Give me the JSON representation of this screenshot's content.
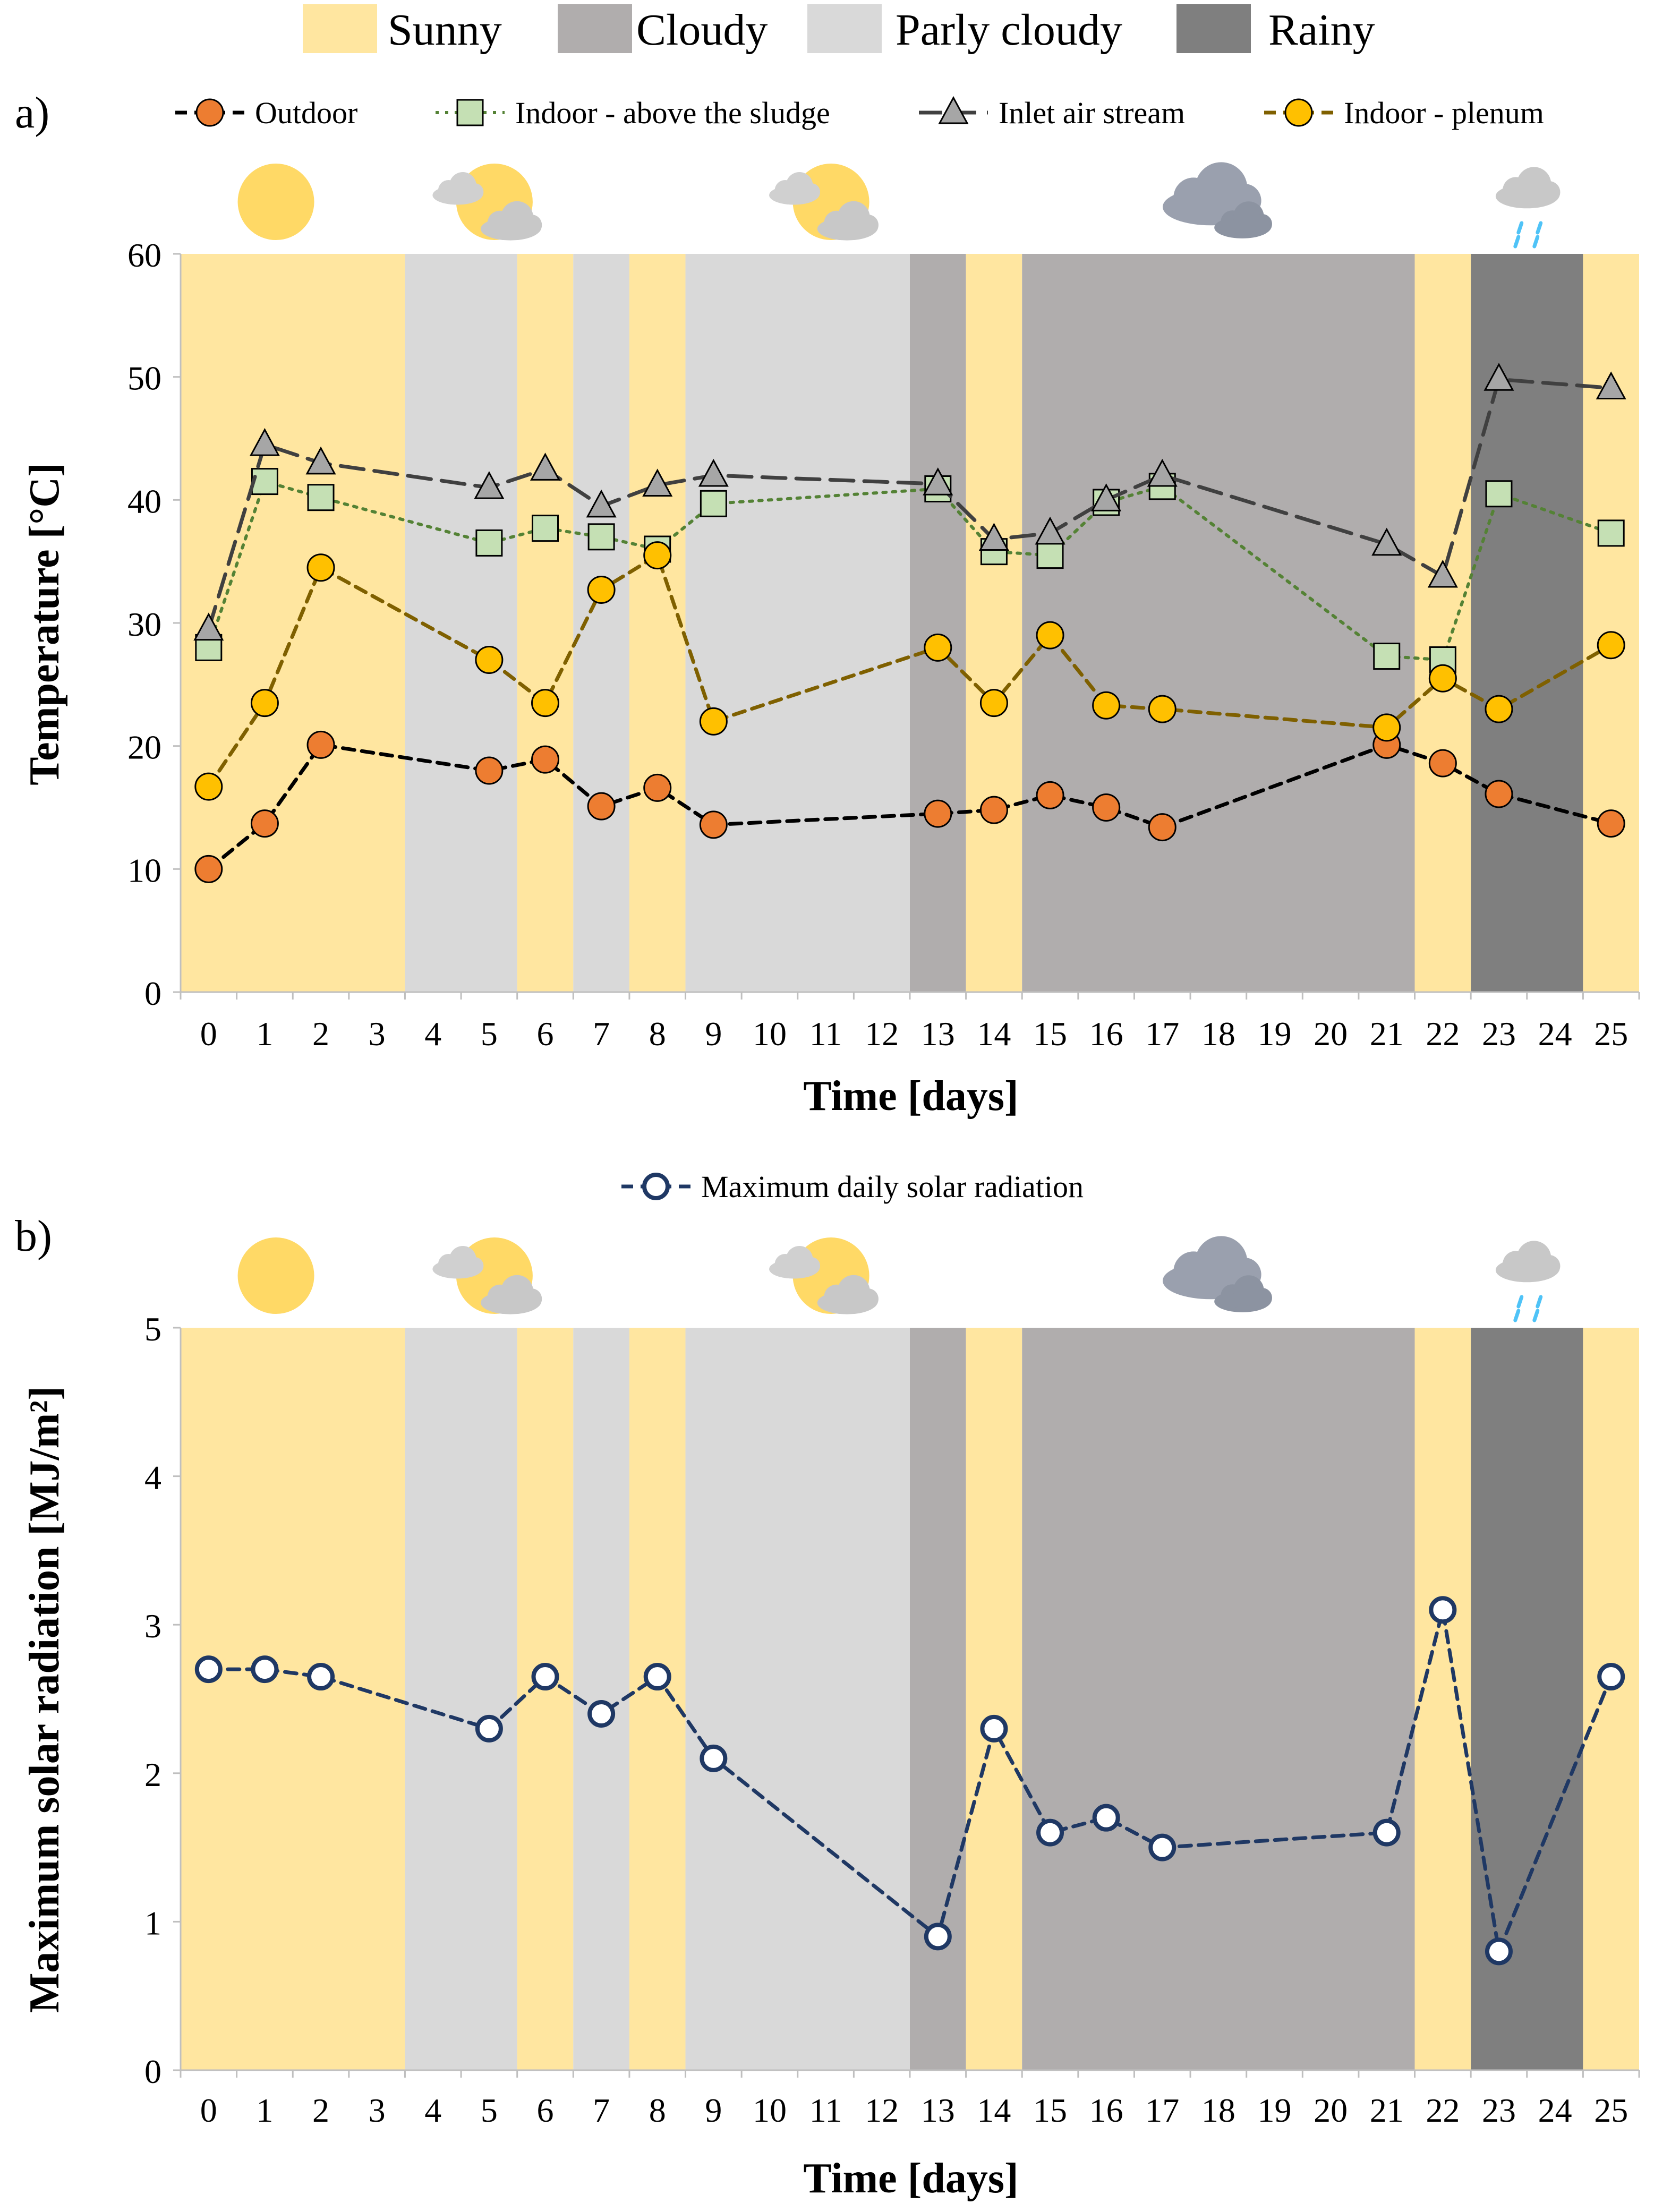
{
  "weather_legend": [
    {
      "key": "sunny",
      "label": "Sunny",
      "color": "#FFE6A0"
    },
    {
      "key": "cloudy",
      "label": "Cloudy",
      "color": "#B0ADAD"
    },
    {
      "key": "partly",
      "label": "Parly cloudy",
      "color": "#D9D9D9"
    },
    {
      "key": "rainy",
      "label": "Rainy",
      "color": "#7F7F7F"
    }
  ],
  "weather_icons": [
    {
      "day_index": 1.2,
      "type": "sun-icon"
    },
    {
      "day_index": 5.0,
      "type": "partly-cloudy-icon"
    },
    {
      "day_index": 11.0,
      "type": "partly-cloudy-icon"
    },
    {
      "day_index": 18.0,
      "type": "cloud-icon"
    },
    {
      "day_index": 23.5,
      "type": "rain-icon"
    }
  ],
  "background_bands": [
    {
      "start": 0,
      "end": 4,
      "weather": "sunny"
    },
    {
      "start": 4,
      "end": 6,
      "weather": "partly"
    },
    {
      "start": 6,
      "end": 7,
      "weather": "sunny"
    },
    {
      "start": 7,
      "end": 8,
      "weather": "partly"
    },
    {
      "start": 8,
      "end": 9,
      "weather": "sunny"
    },
    {
      "start": 9,
      "end": 13,
      "weather": "partly"
    },
    {
      "start": 13,
      "end": 14,
      "weather": "cloudy"
    },
    {
      "start": 14,
      "end": 15,
      "weather": "sunny"
    },
    {
      "start": 15,
      "end": 22,
      "weather": "cloudy"
    },
    {
      "start": 22,
      "end": 23,
      "weather": "sunny"
    },
    {
      "start": 23,
      "end": 25,
      "weather": "rainy"
    },
    {
      "start": 25,
      "end": 26,
      "weather": "sunny"
    }
  ],
  "chart_data": [
    {
      "type": "line",
      "panel_label": "a)",
      "xlabel": "Time [days]",
      "ylabel": "Temperature [°C]",
      "ylim": [
        0,
        60
      ],
      "yticks": [
        0,
        10,
        20,
        30,
        40,
        50,
        60
      ],
      "categories": [
        "0",
        "1",
        "2",
        "3",
        "4",
        "5",
        "6",
        "7",
        "8",
        "9",
        "10",
        "11",
        "12",
        "13",
        "14",
        "15",
        "16",
        "17",
        "18",
        "19",
        "20",
        "21",
        "22",
        "23",
        "24",
        "25"
      ],
      "series": [
        {
          "name": "Outdoor",
          "marker": "circle",
          "line": "dashed",
          "color": "#000000",
          "fill": "#ED7D31",
          "points": [
            [
              0,
              10
            ],
            [
              1,
              13.7
            ],
            [
              2,
              20.1
            ],
            [
              5,
              18
            ],
            [
              6,
              18.9
            ],
            [
              7,
              15.1
            ],
            [
              8,
              16.6
            ],
            [
              9,
              13.6
            ],
            [
              13,
              14.5
            ],
            [
              14,
              14.8
            ],
            [
              15,
              16
            ],
            [
              16,
              15
            ],
            [
              17,
              13.4
            ],
            [
              21,
              20.1
            ],
            [
              22,
              18.6
            ],
            [
              23,
              16.1
            ],
            [
              25,
              13.7
            ]
          ]
        },
        {
          "name": "Indoor - above the sludge",
          "marker": "square",
          "line": "dotted",
          "color": "#548235",
          "fill": "#C5E0B4",
          "points": [
            [
              0,
              28
            ],
            [
              1,
              41.5
            ],
            [
              2,
              40.2
            ],
            [
              5,
              36.5
            ],
            [
              6,
              37.7
            ],
            [
              7,
              37
            ],
            [
              8,
              36
            ],
            [
              9,
              39.7
            ],
            [
              13,
              40.9
            ],
            [
              14,
              35.8
            ],
            [
              15,
              35.5
            ],
            [
              16,
              39.8
            ],
            [
              17,
              41.1
            ],
            [
              21,
              27.3
            ],
            [
              22,
              27
            ],
            [
              23,
              40.5
            ],
            [
              25,
              37.3
            ]
          ]
        },
        {
          "name": "Inlet air stream",
          "marker": "triangle",
          "line": "longdash",
          "color": "#404040",
          "fill": "#A6A6A6",
          "points": [
            [
              0,
              29.5
            ],
            [
              1,
              44.5
            ],
            [
              2,
              43
            ],
            [
              5,
              41
            ],
            [
              6,
              42.5
            ],
            [
              7,
              39.5
            ],
            [
              8,
              41.2
            ],
            [
              9,
              42
            ],
            [
              13,
              41.3
            ],
            [
              14,
              36.8
            ],
            [
              15,
              37.3
            ],
            [
              16,
              40
            ],
            [
              17,
              42
            ],
            [
              21,
              36.4
            ],
            [
              22,
              33.8
            ],
            [
              23,
              49.8
            ],
            [
              25,
              49.1
            ]
          ]
        },
        {
          "name": "Indoor - plenum",
          "marker": "circle",
          "line": "dashed",
          "color": "#7F6000",
          "fill": "#FFC000",
          "points": [
            [
              0,
              16.7
            ],
            [
              1,
              23.5
            ],
            [
              2,
              34.5
            ],
            [
              5,
              27
            ],
            [
              6,
              23.5
            ],
            [
              7,
              32.7
            ],
            [
              8,
              35.5
            ],
            [
              9,
              22
            ],
            [
              13,
              28
            ],
            [
              14,
              23.5
            ],
            [
              15,
              29
            ],
            [
              16,
              23.3
            ],
            [
              17,
              23
            ],
            [
              21,
              21.5
            ],
            [
              22,
              25.5
            ],
            [
              23,
              23
            ],
            [
              25,
              28.2
            ]
          ]
        }
      ]
    },
    {
      "type": "line",
      "panel_label": "b)",
      "xlabel": "Time [days]",
      "ylabel": "Maximum solar radiation [MJ/m²]",
      "ylim": [
        0,
        5
      ],
      "yticks": [
        0,
        1,
        2,
        3,
        4,
        5
      ],
      "categories": [
        "0",
        "1",
        "2",
        "3",
        "4",
        "5",
        "6",
        "7",
        "8",
        "9",
        "10",
        "11",
        "12",
        "13",
        "14",
        "15",
        "16",
        "17",
        "18",
        "19",
        "20",
        "21",
        "22",
        "23",
        "24",
        "25"
      ],
      "series": [
        {
          "name": "Maximum daily solar radiation",
          "marker": "open-circle",
          "line": "dashed",
          "color": "#1F3864",
          "fill": "#FFFFFF",
          "points": [
            [
              0,
              2.7
            ],
            [
              1,
              2.7
            ],
            [
              2,
              2.65
            ],
            [
              5,
              2.3
            ],
            [
              6,
              2.65
            ],
            [
              7,
              2.4
            ],
            [
              8,
              2.65
            ],
            [
              9,
              2.1
            ],
            [
              13,
              0.9
            ],
            [
              14,
              2.3
            ],
            [
              15,
              1.6
            ],
            [
              16,
              1.7
            ],
            [
              17,
              1.5
            ],
            [
              21,
              1.6
            ],
            [
              22,
              3.1
            ],
            [
              23,
              0.8
            ],
            [
              25,
              2.65
            ]
          ]
        }
      ]
    }
  ]
}
